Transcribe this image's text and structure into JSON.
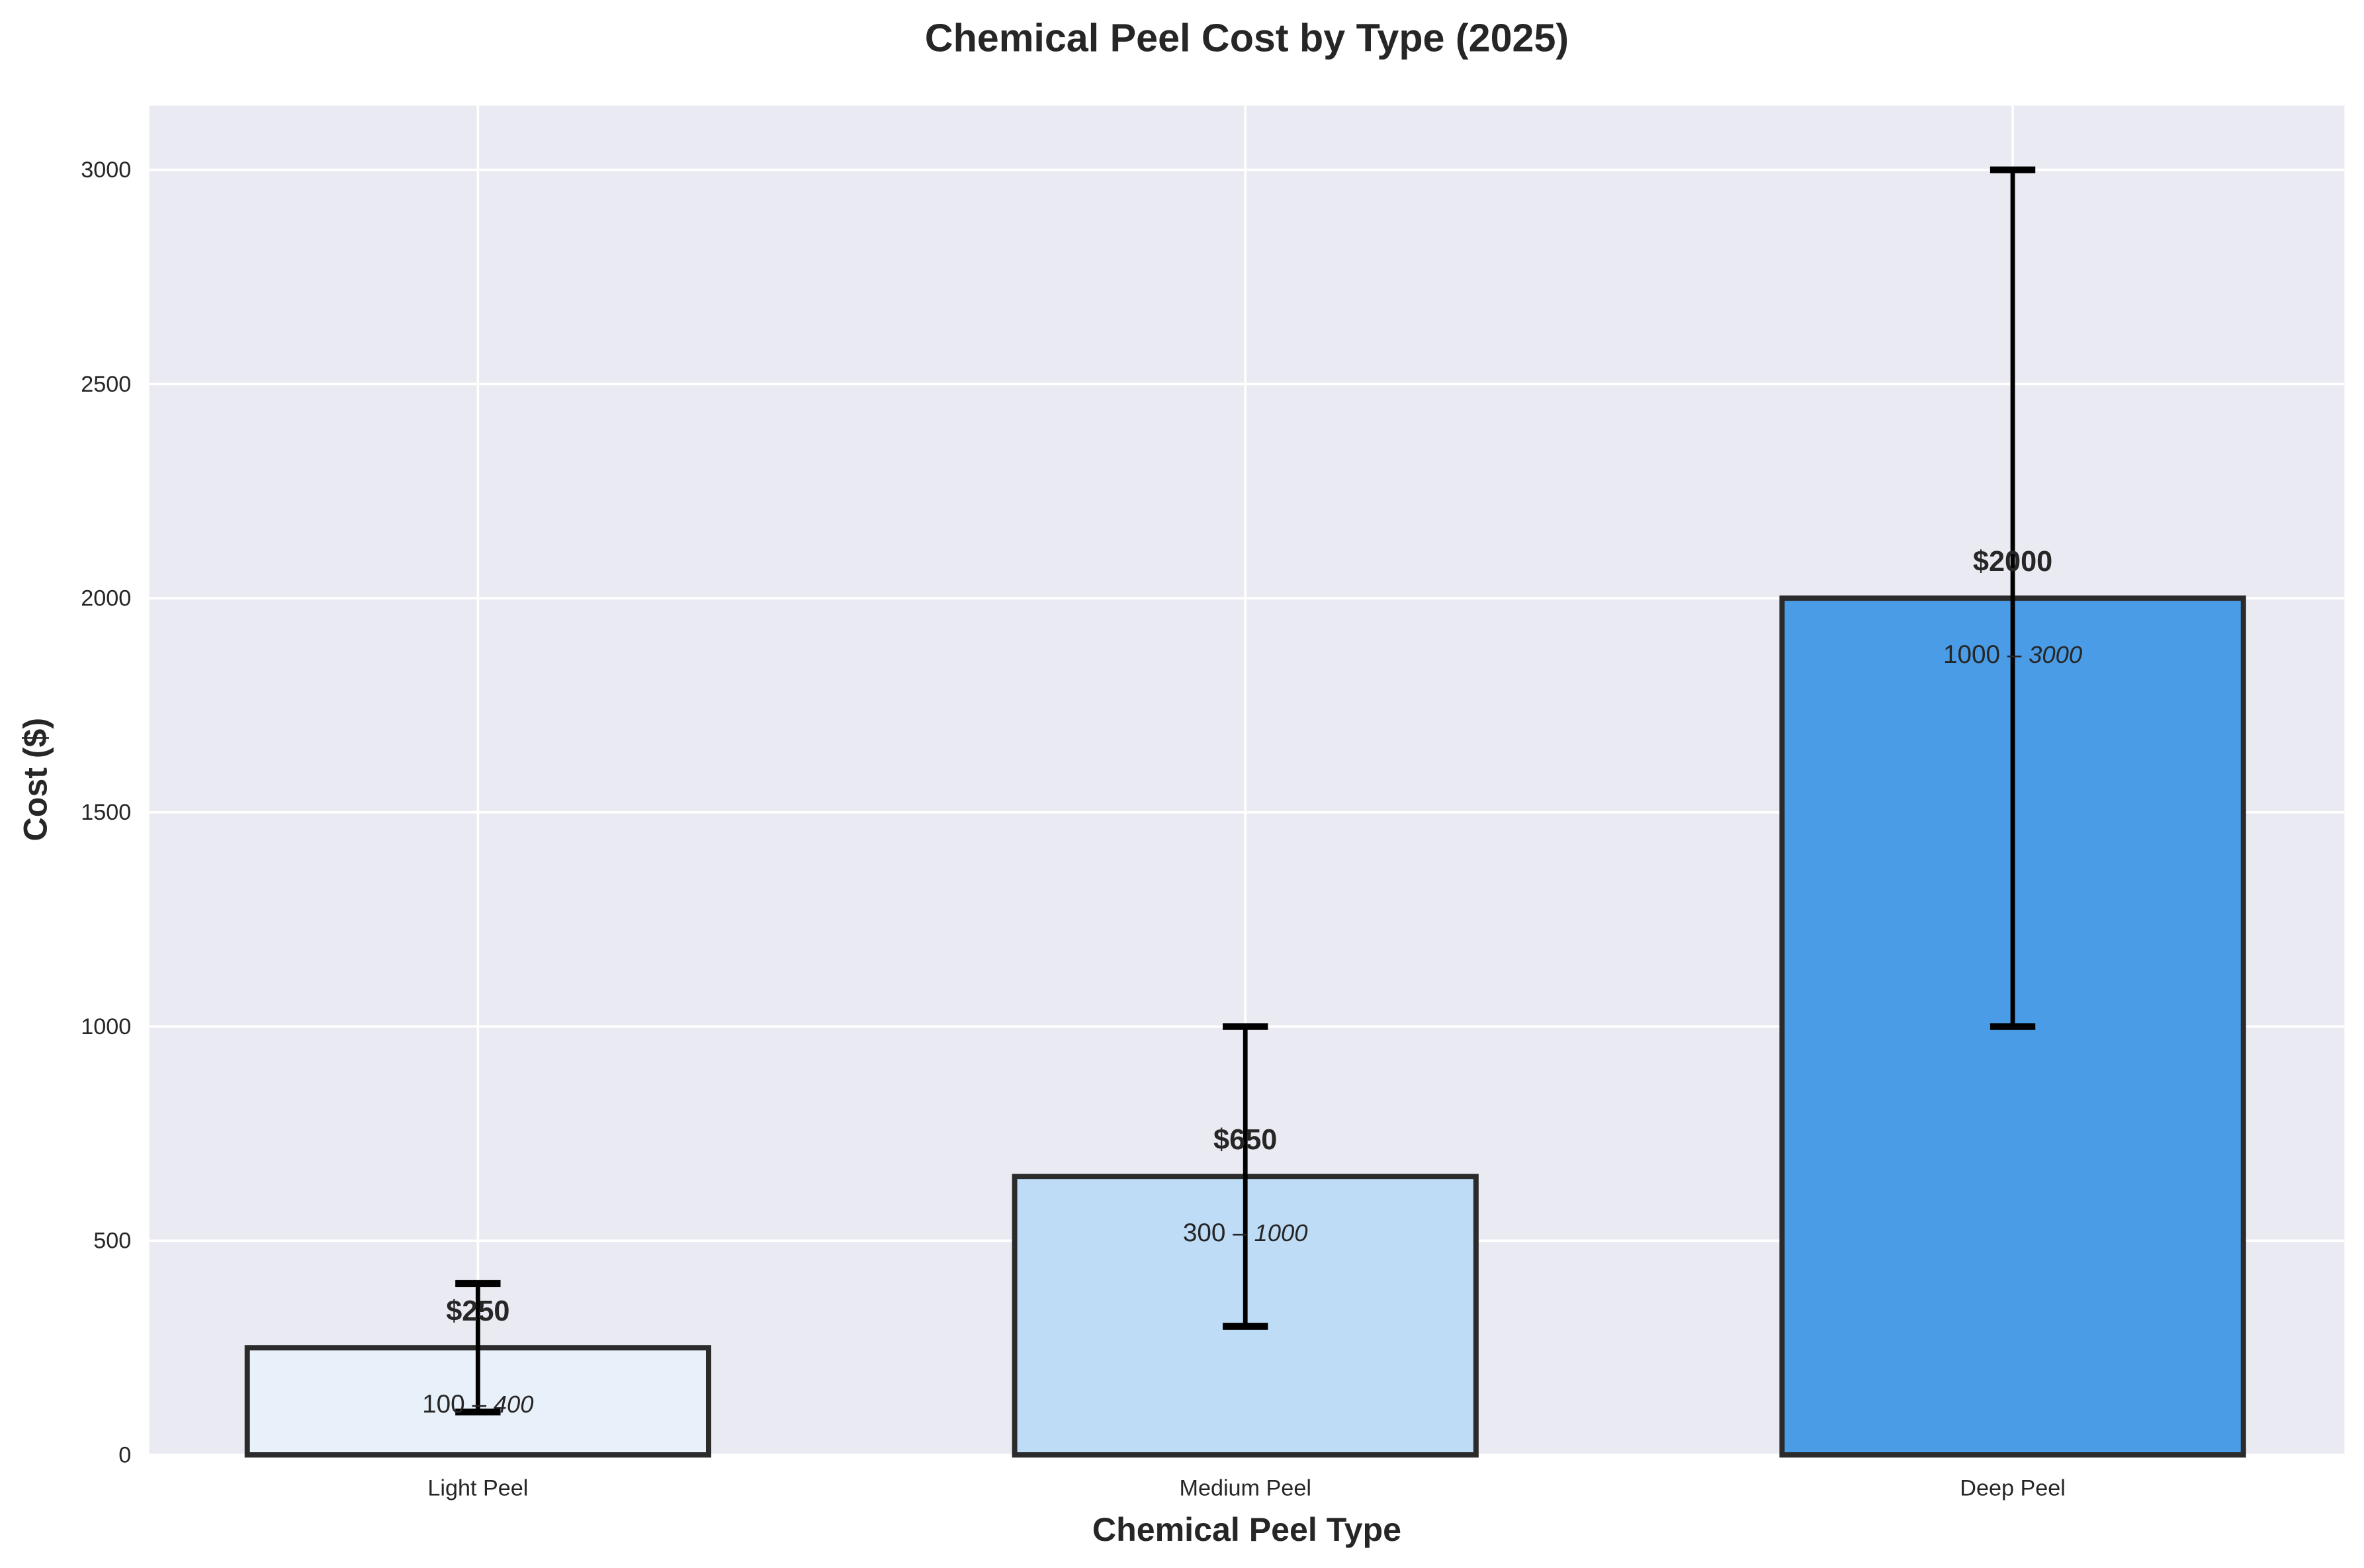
{
  "chart_data": {
    "type": "bar",
    "title": "Chemical Peel Cost by Type (2025)",
    "xlabel": "Chemical Peel Type",
    "ylabel": "Cost ($)",
    "categories": [
      "Light Peel",
      "Medium Peel",
      "Deep Peel"
    ],
    "values": [
      250,
      650,
      2000
    ],
    "ranges": [
      [
        100,
        400
      ],
      [
        300,
        1000
      ],
      [
        1000,
        3000
      ]
    ],
    "value_labels": [
      "$250",
      "$650",
      "$2000"
    ],
    "range_labels": [
      {
        "low": "100 –",
        "high": "400"
      },
      {
        "low": "300 –",
        "high": "1000"
      },
      {
        "low": "1000 –",
        "high": "3000"
      }
    ],
    "colors": [
      "#e8f0fa",
      "#bedcf6",
      "#4a9ce6"
    ],
    "edge_color": "#2b2b2b",
    "background": "#eaeaf2",
    "ylim": [
      0,
      3150
    ],
    "yticks": [
      0,
      500,
      1000,
      1500,
      2000,
      2500,
      3000
    ],
    "grid": true,
    "legend": "none"
  }
}
